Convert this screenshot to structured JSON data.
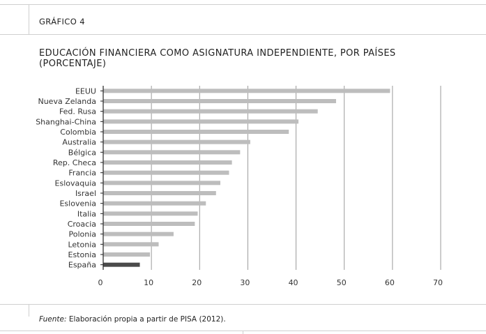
{
  "header": {
    "figure_label": "GRÁFICO 4"
  },
  "chart_data": {
    "type": "bar",
    "orientation": "horizontal",
    "title_lines": [
      "EDUCACIÓN FINANCIERA COMO ASIGNATURA INDEPENDIENTE, POR PAÍSES",
      "(PORCENTAJE)"
    ],
    "categories": [
      "EEUU",
      "Nueva Zelanda",
      "Fed. Rusa",
      "Shanghai-China",
      "Colombia",
      "Australia",
      "Bélgica",
      "Rep. Checa",
      "Francia",
      "Eslovaquia",
      "Israel",
      "Eslovenia",
      "Italia",
      "Croacia",
      "Polonia",
      "Letonia",
      "Estonia",
      "España"
    ],
    "values": [
      59.5,
      48.3,
      44.5,
      40.5,
      38.5,
      30.5,
      28.4,
      26.7,
      26.1,
      24.3,
      23.4,
      21.3,
      19.6,
      19.0,
      14.6,
      11.5,
      9.7,
      7.6
    ],
    "highlight": "España",
    "xlim": [
      0,
      70
    ],
    "xticks": [
      "0",
      "10",
      "20",
      "30",
      "40",
      "50",
      "60",
      "70"
    ],
    "grid": "vertical",
    "colors": {
      "bar": "#bdbdbd",
      "highlight": "#4a4a4a",
      "grid": "#9a9a9a",
      "axis": "#222222"
    }
  },
  "footer": {
    "source_label": "Fuente:",
    "source_text": "Elaboración propia a partir de PISA (2012)."
  }
}
